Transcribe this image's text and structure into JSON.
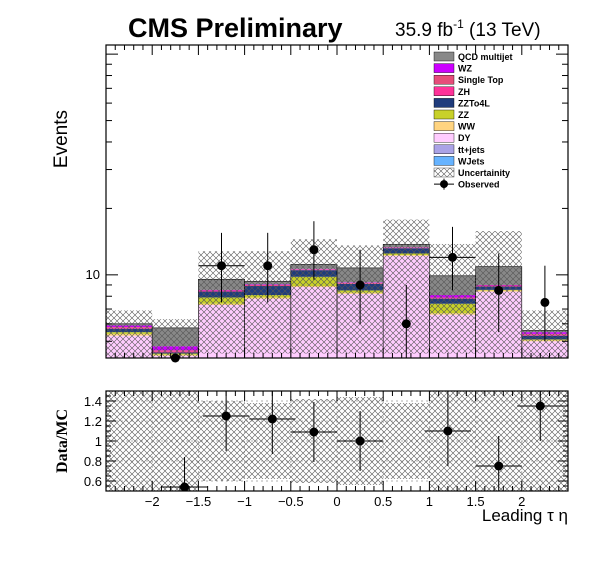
{
  "header": {
    "experiment": "CMS Preliminary",
    "lumi_value": "35.9 fb",
    "lumi_exp": "-1",
    "energy": " (13 TeV)"
  },
  "chart_data": [
    {
      "type": "bar",
      "subtype": "stacked-histogram",
      "ylabel": "Events",
      "xlabel": "Leading τ η",
      "y_scale": "log",
      "ylim": [
        4.2,
        110
      ],
      "xlim": [
        -2.5,
        2.5
      ],
      "y_tick_labels": [
        "10"
      ],
      "bin_edges": [
        -2.5,
        -2.0,
        -1.5,
        -1.0,
        -0.5,
        0.0,
        0.5,
        1.0,
        1.5,
        2.0,
        2.5
      ],
      "series": [
        {
          "name": "DY",
          "color": "#ffccff",
          "values": [
            5.3,
            4.3,
            7.3,
            7.8,
            8.8,
            8.2,
            12.2,
            6.6,
            8.4,
            5.0
          ]
        },
        {
          "name": "WW",
          "color": "#ffd480",
          "values": [
            0.1,
            0.05,
            0.1,
            0.1,
            0.1,
            0.1,
            0.1,
            0.1,
            0.1,
            0.05
          ]
        },
        {
          "name": "ZZ",
          "color": "#c8d12a",
          "values": [
            0.1,
            0.05,
            0.5,
            0.2,
            0.9,
            0.2,
            0.2,
            0.7,
            0.05,
            0.05
          ]
        },
        {
          "name": "ZZTo4L",
          "color": "#1f3c7c",
          "values": [
            0.2,
            0.05,
            0.5,
            0.8,
            0.7,
            0.6,
            0.7,
            0.4,
            0.3,
            0.2
          ]
        },
        {
          "name": "ZH",
          "color": "#ff3399",
          "values": [
            0.05,
            0.05,
            0.05,
            0.05,
            0.05,
            0.05,
            0.05,
            0.05,
            0.05,
            0.05
          ]
        },
        {
          "name": "Single Top",
          "color": "#e64d7a",
          "values": [
            0.05,
            0.05,
            0.05,
            0.05,
            0.05,
            0.05,
            0.05,
            0.05,
            0.05,
            0.05
          ]
        },
        {
          "name": "WZ",
          "color": "#cc00ff",
          "values": [
            0.1,
            0.2,
            0.05,
            0.05,
            0.05,
            0.05,
            0.05,
            0.2,
            0.05,
            0.1
          ]
        },
        {
          "name": "QCD multijet",
          "color": "#888888",
          "values": [
            0.1,
            1.0,
            1.0,
            0.3,
            0.5,
            1.5,
            0.4,
            1.8,
            1.9,
            0.1
          ]
        }
      ],
      "legend_only": [
        {
          "name": "tt+jets",
          "color": "#aaa3e6"
        },
        {
          "name": "WJets",
          "color": "#66b3ff"
        }
      ],
      "uncertainty": {
        "name": "Uncertainity",
        "up": [
          6.9,
          6.3,
          12.8,
          12.8,
          14.5,
          13.6,
          17.8,
          13.8,
          15.8,
          6.9
        ],
        "down": [
          4.2,
          4.2,
          4.4,
          4.4,
          4.4,
          4.4,
          4.4,
          4.4,
          4.4,
          4.2
        ]
      },
      "observed": {
        "name": "Observed",
        "values": [
          null,
          2.0,
          11.0,
          11.0,
          13.0,
          9.0,
          6.0,
          12.0,
          8.5,
          7.5
        ],
        "err_up": [
          null,
          2.0,
          4.5,
          4.5,
          4.5,
          4.0,
          3.0,
          4.5,
          4.0,
          3.5
        ],
        "err_down": [
          null,
          1.5,
          3.5,
          3.5,
          3.5,
          3.0,
          2.0,
          3.5,
          3.0,
          2.5
        ],
        "x_err_bins": [
          false,
          false,
          true,
          false,
          false,
          false,
          false,
          true,
          false,
          false
        ]
      },
      "legend_order": [
        "QCD multijet",
        "WZ",
        "Single Top",
        "ZH",
        "ZZTo4L",
        "ZZ",
        "WW",
        "DY",
        "tt+jets",
        "WJets",
        "Uncertainity",
        "Observed"
      ]
    },
    {
      "type": "scatter",
      "subtype": "ratio-panel",
      "ylabel": "Data/MC",
      "xlabel": "Leading τ η",
      "ylim": [
        0.5,
        1.5
      ],
      "xlim": [
        -2.5,
        2.5
      ],
      "y_ticks": [
        0.6,
        0.8,
        1,
        1.2,
        1.4
      ],
      "y_tick_labels": [
        "0.6",
        "0.8",
        "1",
        "1.2",
        "1.4"
      ],
      "x_ticks": [
        -2,
        -1.5,
        -1,
        -0.5,
        0,
        0.5,
        1,
        1.5,
        2
      ],
      "x_tick_labels": [
        "−2",
        "−1.5",
        "−1",
        "−0.5",
        "0",
        "0.5",
        "1",
        "1.5",
        "2"
      ],
      "grid": true,
      "band": {
        "up": [
          1.5,
          1.5,
          1.4,
          1.38,
          1.42,
          1.44,
          1.38,
          1.5,
          1.5,
          1.5
        ],
        "down": [
          0.5,
          0.5,
          0.6,
          0.62,
          0.58,
          0.56,
          0.62,
          0.5,
          0.5,
          0.5
        ]
      },
      "points": {
        "x": [
          -1.65,
          -1.2,
          -0.7,
          -0.25,
          0.25,
          1.2,
          1.75,
          2.2
        ],
        "y": [
          0.54,
          1.25,
          1.22,
          1.09,
          1.0,
          1.1,
          0.75,
          1.35
        ],
        "x_err": [
          0.25,
          0.25,
          0.25,
          0.25,
          0.25,
          0.25,
          0.25,
          0.25
        ],
        "y_err_up": [
          0.3,
          0.35,
          0.35,
          0.3,
          0.3,
          0.35,
          0.3,
          0.4
        ],
        "y_err_down": [
          0.25,
          0.35,
          0.35,
          0.3,
          0.3,
          0.35,
          0.3,
          0.35
        ]
      }
    }
  ]
}
